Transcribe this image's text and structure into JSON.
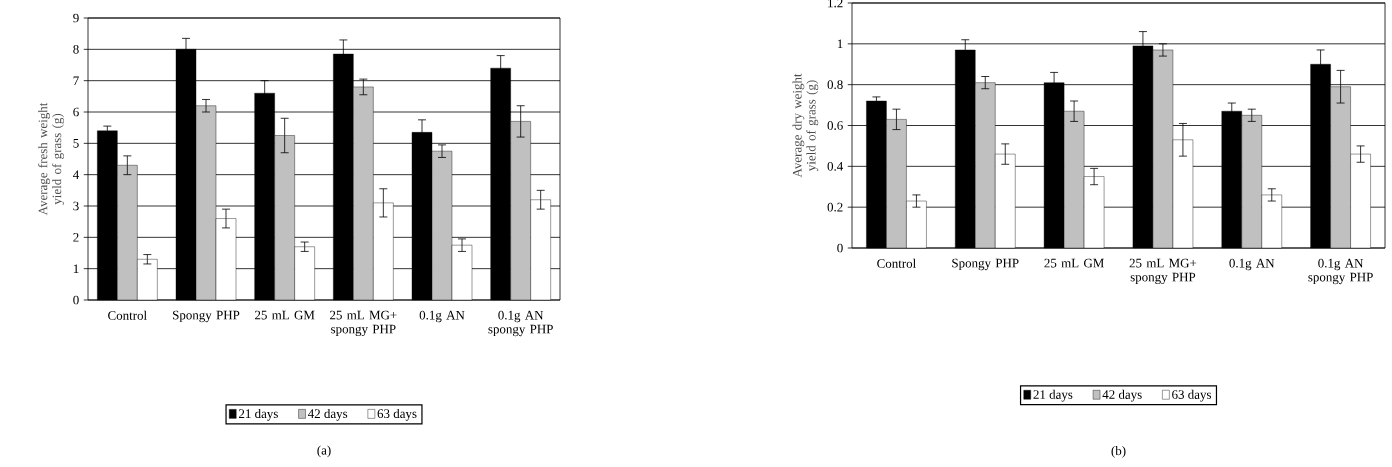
{
  "chart_data": [
    {
      "type": "bar",
      "ylabel": "Average fresh weight yield of grass (g)",
      "categories": [
        "Control",
        "Spongy PHP",
        "25 mL GM",
        "25 mL MG+ spongy PHP",
        "0.1g AN",
        "0.1g AN spongy PHP"
      ],
      "series": [
        {
          "name": "21 days",
          "color": "#000000",
          "values": [
            5.4,
            8.0,
            6.6,
            7.85,
            5.35,
            7.4
          ],
          "errors": [
            0.15,
            0.35,
            0.4,
            0.45,
            0.4,
            0.4
          ]
        },
        {
          "name": "42 days",
          "color": "#c0c0c0",
          "values": [
            4.3,
            6.2,
            5.25,
            6.8,
            4.75,
            5.7
          ],
          "errors": [
            0.3,
            0.2,
            0.55,
            0.25,
            0.2,
            0.5
          ]
        },
        {
          "name": "63 days",
          "color": "#ffffff",
          "values": [
            1.3,
            2.6,
            1.7,
            3.1,
            1.75,
            3.2
          ],
          "errors": [
            0.15,
            0.3,
            0.15,
            0.45,
            0.2,
            0.3
          ]
        }
      ],
      "ylim": [
        0,
        9
      ],
      "yticks": [
        0,
        1,
        2,
        3,
        4,
        5,
        6,
        7,
        8,
        9
      ],
      "grid": "y",
      "legend": "bottom",
      "annotations": [
        "(a)"
      ]
    },
    {
      "type": "bar",
      "ylabel": "Average dry weight yield of grass (g)",
      "categories": [
        "Control",
        "Spongy PHP",
        "25 mL GM",
        "25 mL MG+ spongy PHP",
        "0.1g AN",
        "0.1g AN spongy PHP"
      ],
      "series": [
        {
          "name": "21 days",
          "color": "#000000",
          "values": [
            0.72,
            0.97,
            0.81,
            0.99,
            0.67,
            0.9
          ],
          "errors": [
            0.02,
            0.05,
            0.05,
            0.07,
            0.04,
            0.07
          ]
        },
        {
          "name": "42 days",
          "color": "#c0c0c0",
          "values": [
            0.63,
            0.81,
            0.67,
            0.97,
            0.65,
            0.79
          ],
          "errors": [
            0.05,
            0.03,
            0.05,
            0.03,
            0.03,
            0.08
          ]
        },
        {
          "name": "63 days",
          "color": "#ffffff",
          "values": [
            0.23,
            0.46,
            0.35,
            0.53,
            0.26,
            0.46
          ],
          "errors": [
            0.03,
            0.05,
            0.04,
            0.08,
            0.03,
            0.04
          ]
        }
      ],
      "ylim": [
        0,
        1.2
      ],
      "yticks": [
        0,
        0.2,
        0.4,
        0.6,
        0.8,
        1,
        1.2
      ],
      "grid": "y",
      "legend": "bottom",
      "annotations": [
        "(b)"
      ]
    }
  ]
}
